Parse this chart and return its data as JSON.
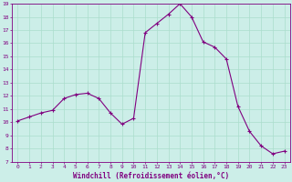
{
  "x": [
    0,
    1,
    2,
    3,
    4,
    5,
    6,
    7,
    8,
    9,
    10,
    11,
    12,
    13,
    14,
    15,
    16,
    17,
    18,
    19,
    20,
    21,
    22,
    23
  ],
  "y": [
    10.1,
    10.4,
    10.7,
    10.9,
    11.8,
    12.1,
    12.2,
    11.8,
    10.7,
    9.85,
    10.3,
    16.8,
    17.5,
    18.2,
    19.0,
    18.0,
    16.1,
    15.7,
    14.8,
    11.2,
    9.3,
    8.2,
    7.6,
    7.8
  ],
  "line_color": "#800080",
  "marker": "+",
  "marker_size": 3,
  "background_color": "#cceee8",
  "grid_color": "#aaddcc",
  "xlabel": "Windchill (Refroidissement éolien,°C)",
  "ylim": [
    7,
    19
  ],
  "xlim": [
    -0.5,
    23.5
  ],
  "yticks": [
    7,
    8,
    9,
    10,
    11,
    12,
    13,
    14,
    15,
    16,
    17,
    18,
    19
  ],
  "xticks": [
    0,
    1,
    2,
    3,
    4,
    5,
    6,
    7,
    8,
    9,
    10,
    11,
    12,
    13,
    14,
    15,
    16,
    17,
    18,
    19,
    20,
    21,
    22,
    23
  ],
  "tick_fontsize": 4.5,
  "xlabel_fontsize": 5.5,
  "line_width": 0.8,
  "marker_size_pt": 3.5,
  "marker_linewidth": 0.8
}
